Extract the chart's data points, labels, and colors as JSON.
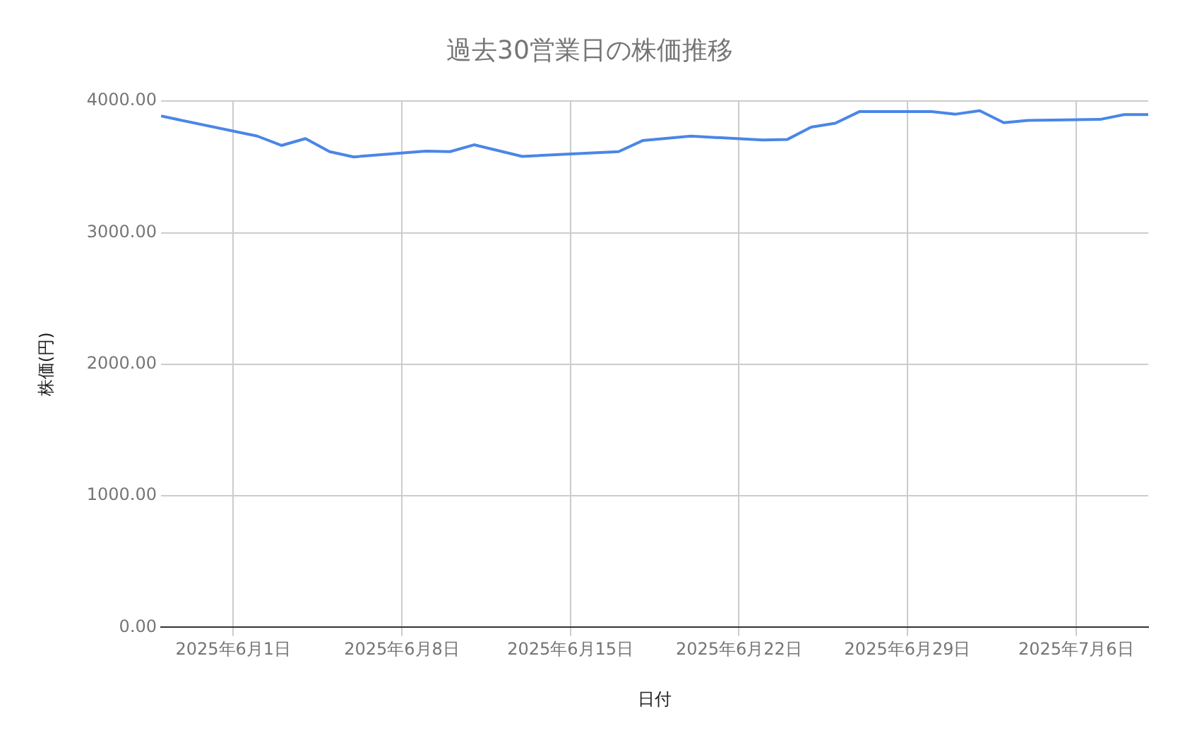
{
  "chart_data": {
    "type": "line",
    "title": "過去30営業日の株価推移",
    "xlabel": "日付",
    "ylabel": "株価(円)",
    "x": [
      "2025-05-29",
      "2025-06-02",
      "2025-06-03",
      "2025-06-04",
      "2025-06-05",
      "2025-06-06",
      "2025-06-09",
      "2025-06-10",
      "2025-06-11",
      "2025-06-13",
      "2025-06-17",
      "2025-06-18",
      "2025-06-20",
      "2025-06-23",
      "2025-06-24",
      "2025-06-25",
      "2025-06-26",
      "2025-06-27",
      "2025-06-30",
      "2025-07-01",
      "2025-07-02",
      "2025-07-03",
      "2025-07-04",
      "2025-07-07",
      "2025-07-08",
      "2025-07-09"
    ],
    "series": [
      {
        "color": "#4a86e8",
        "values": [
          3887,
          3734,
          3663,
          3715,
          3616,
          3576,
          3620,
          3616,
          3668,
          3580,
          3616,
          3700,
          3734,
          3704,
          3708,
          3803,
          3832,
          3920,
          3920,
          3901,
          3927,
          3836,
          3854,
          3861,
          3898,
          3898
        ]
      }
    ],
    "xlim": [
      "2025-05-29",
      "2025-07-09"
    ],
    "xticks": [
      {
        "value": "2025-06-01",
        "label": "2025年6月1日"
      },
      {
        "value": "2025-06-08",
        "label": "2025年6月8日"
      },
      {
        "value": "2025-06-15",
        "label": "2025年6月15日"
      },
      {
        "value": "2025-06-22",
        "label": "2025年6月22日"
      },
      {
        "value": "2025-06-29",
        "label": "2025年6月29日"
      },
      {
        "value": "2025-07-06",
        "label": "2025年7月6日"
      }
    ],
    "ylim": [
      0,
      4000
    ],
    "yticks": [
      {
        "value": 0,
        "label": "0.00"
      },
      {
        "value": 1000,
        "label": "1000.00"
      },
      {
        "value": 2000,
        "label": "2000.00"
      },
      {
        "value": 3000,
        "label": "3000.00"
      },
      {
        "value": 4000,
        "label": "4000.00"
      }
    ],
    "grid": true,
    "legend": false,
    "marker": "none",
    "line_style": "solid"
  }
}
